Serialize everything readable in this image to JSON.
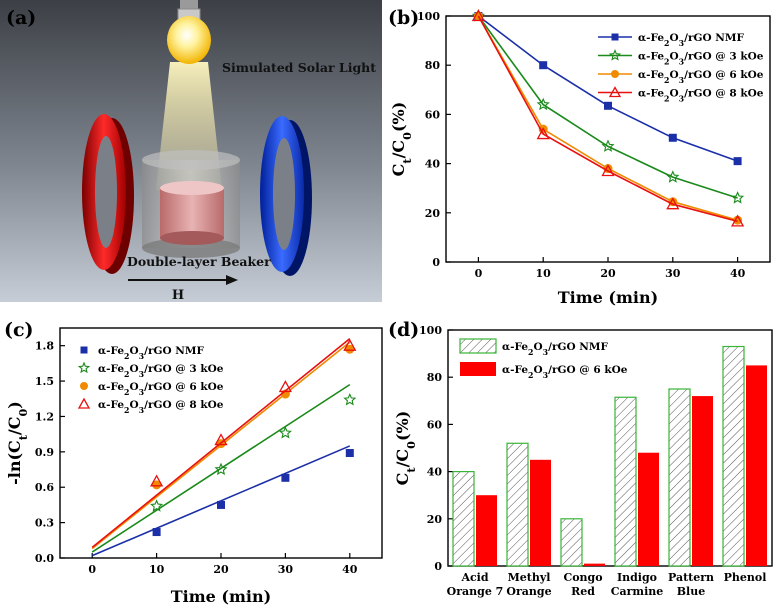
{
  "panel_a": {
    "label": "(a)",
    "light_label": "Simulated Solar Light",
    "beaker_label": "Double-layer Beaker",
    "field_label": "H"
  },
  "chart_data": [
    {
      "id": "b",
      "panel_label": "(b)",
      "type": "line",
      "xlabel": "Time (min)",
      "ylabel": "Ct/C0(%)",
      "x": [
        0,
        10,
        20,
        30,
        40
      ],
      "xlim": [
        -5,
        45
      ],
      "ylim": [
        0,
        100
      ],
      "xticks": [
        0,
        10,
        20,
        30,
        40
      ],
      "yticks": [
        0,
        20,
        40,
        60,
        80,
        100
      ],
      "legend_position": "top-right",
      "series": [
        {
          "name": "α-Fe2O3/rGO NMF",
          "color": "#1a2fa8",
          "marker": "square",
          "values": [
            100,
            80,
            63.5,
            50.5,
            41
          ]
        },
        {
          "name": "α-Fe2O3/rGO @ 3 kOe",
          "color": "#1a8a1a",
          "marker": "star",
          "values": [
            100,
            64,
            47,
            34.5,
            26
          ]
        },
        {
          "name": "α-Fe2O3/rGO @ 6 kOe",
          "color": "#f08a00",
          "marker": "circle",
          "values": [
            100,
            54,
            38,
            24.5,
            17
          ]
        },
        {
          "name": "α-Fe2O3/rGO @ 8 kOe",
          "color": "#e81010",
          "marker": "triangle",
          "values": [
            100,
            52,
            37,
            23.5,
            16.5
          ]
        }
      ]
    },
    {
      "id": "c",
      "panel_label": "(c)",
      "type": "scatter",
      "xlabel": "Time (min)",
      "ylabel": "-ln(Ct/C0)",
      "x": [
        0,
        10,
        20,
        30,
        40
      ],
      "xlim": [
        -5,
        45
      ],
      "ylim": [
        0,
        1.95
      ],
      "xticks": [
        0,
        10,
        20,
        30,
        40
      ],
      "yticks": [
        "0.0",
        "0.3",
        "0.6",
        "0.9",
        "1.2",
        "1.5",
        "1.8"
      ],
      "legend_position": "top-left",
      "series": [
        {
          "name": "α-Fe2O3/rGO NMF",
          "color": "#1a2fa8",
          "marker": "square",
          "values": [
            0,
            0.22,
            0.45,
            0.68,
            0.89
          ],
          "fit": [
            0.02,
            0.95
          ]
        },
        {
          "name": "α-Fe2O3/rGO @ 3 kOe",
          "color": "#1a8a1a",
          "marker": "star",
          "values": [
            0,
            0.44,
            0.75,
            1.06,
            1.34
          ],
          "fit": [
            0.05,
            1.47
          ]
        },
        {
          "name": "α-Fe2O3/rGO @ 6 kOe",
          "color": "#f08a00",
          "marker": "circle",
          "values": [
            0,
            0.62,
            0.97,
            1.39,
            1.77
          ],
          "fit": [
            0.08,
            1.83
          ]
        },
        {
          "name": "α-Fe2O3/rGO @ 8 kOe",
          "color": "#e81010",
          "marker": "triangle",
          "values": [
            0,
            0.65,
            1.0,
            1.45,
            1.8
          ],
          "fit": [
            0.09,
            1.86
          ]
        }
      ]
    },
    {
      "id": "d",
      "panel_label": "(d)",
      "type": "bar",
      "ylabel": "Ct/C0(%)",
      "categories": [
        [
          "Acid",
          "Orange 7"
        ],
        [
          "Methyl",
          "Orange"
        ],
        [
          "Congo",
          "Red"
        ],
        [
          "Indigo",
          "Carmine"
        ],
        [
          "Pattern",
          "Blue"
        ],
        [
          "Phenol"
        ]
      ],
      "ylim": [
        0,
        100
      ],
      "yticks": [
        0,
        20,
        40,
        60,
        80,
        100
      ],
      "legend_position": "top-left",
      "series": [
        {
          "name": "α-Fe2O3/rGO NMF",
          "fill": "hatched",
          "edge": "#3ab53a",
          "values": [
            40,
            52,
            20,
            71.5,
            75,
            93
          ]
        },
        {
          "name": "α-Fe2O3/rGO @ 6 kOe",
          "fill": "#ff0000",
          "values": [
            30,
            45,
            1,
            48,
            72,
            85
          ]
        }
      ]
    }
  ]
}
